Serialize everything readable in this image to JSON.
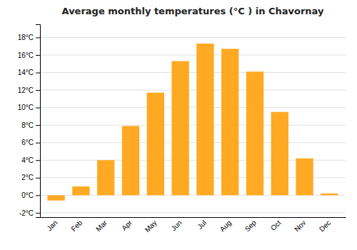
{
  "chart_data": {
    "type": "bar",
    "title": "Average monthly temperatures (°C ) in Chavornay",
    "categories": [
      "Jan",
      "Feb",
      "Mar",
      "Apr",
      "May",
      "Jun",
      "Jul",
      "Aug",
      "Sep",
      "Oct",
      "Nov",
      "Dec"
    ],
    "values": [
      -0.6,
      1.0,
      4.0,
      7.9,
      11.7,
      15.3,
      17.3,
      16.7,
      14.1,
      9.5,
      4.2,
      0.2
    ],
    "color": "#FFAA22",
    "ylim": [
      -2.5,
      19.5
    ],
    "yticks": [
      {
        "value": -2,
        "label": "-2°C"
      },
      {
        "value": 0,
        "label": "0°C"
      },
      {
        "value": 2,
        "label": "2°C"
      },
      {
        "value": 4,
        "label": "4°C"
      },
      {
        "value": 6,
        "label": "6°C"
      },
      {
        "value": 8,
        "label": "8°C"
      },
      {
        "value": 10,
        "label": "10°C"
      },
      {
        "value": 12,
        "label": "12°C"
      },
      {
        "value": 14,
        "label": "14°C"
      },
      {
        "value": 16,
        "label": "16°C"
      },
      {
        "value": 18,
        "label": "18°C"
      }
    ],
    "grid": true
  }
}
